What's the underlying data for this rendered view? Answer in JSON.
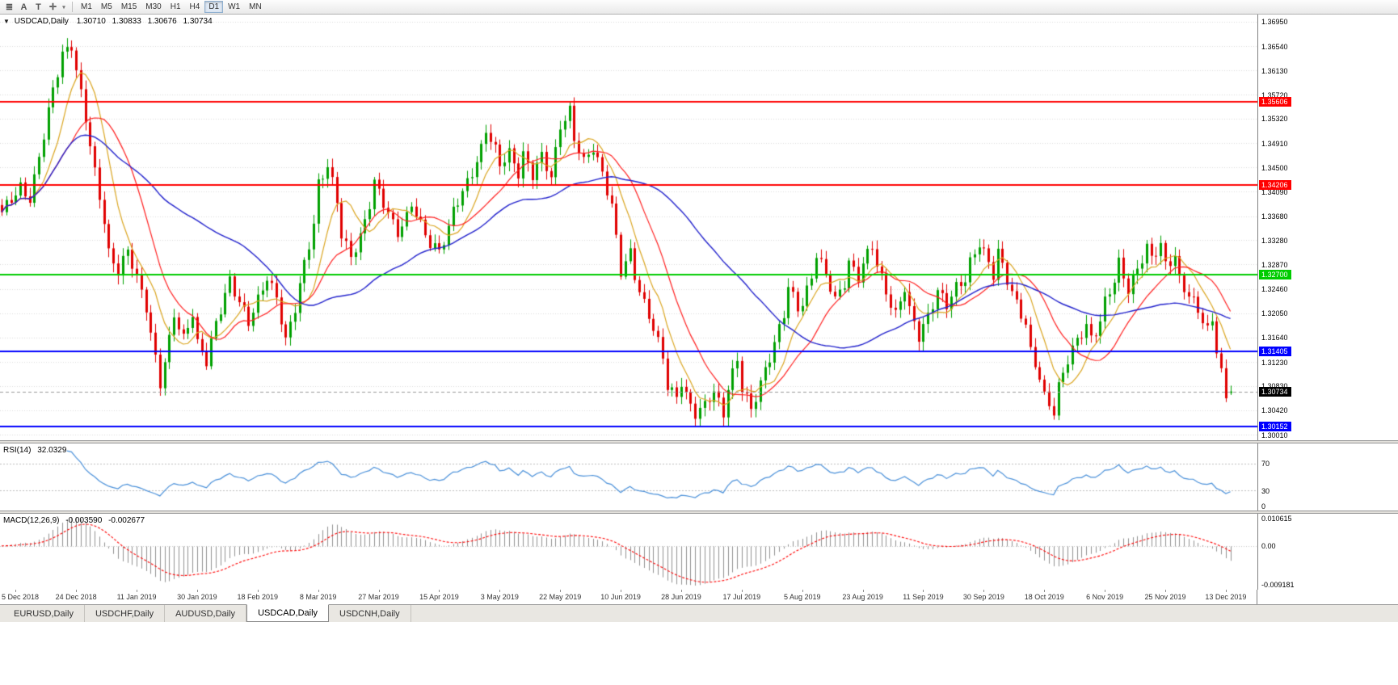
{
  "toolbar": {
    "icons": [
      {
        "name": "chart-list-icon",
        "glyph": "≣"
      },
      {
        "name": "annotate-letter-icon",
        "glyph": "A"
      },
      {
        "name": "text-tool-icon",
        "glyph": "T"
      },
      {
        "name": "crosshair-tool-icon",
        "glyph": "✛"
      },
      {
        "name": "dropdown-caret-icon",
        "glyph": "▾"
      }
    ],
    "timeframes": [
      "M1",
      "M5",
      "M15",
      "M30",
      "H1",
      "H4",
      "D1",
      "W1",
      "MN"
    ],
    "active_timeframe": "D1"
  },
  "chart": {
    "collapse_glyph": "▼",
    "symbol_label": "USDCAD,Daily",
    "open": "1.30710",
    "high": "1.30833",
    "low": "1.30676",
    "close": "1.30734",
    "current_price": "1.30734",
    "axis_ticks": [
      "1.36950",
      "1.36540",
      "1.36130",
      "1.35720",
      "1.35320",
      "1.34910",
      "1.34500",
      "1.34090",
      "1.33680",
      "1.33280",
      "1.32870",
      "1.32460",
      "1.32050",
      "1.31640",
      "1.31230",
      "1.30830",
      "1.30420",
      "1.30010"
    ],
    "hlines": [
      {
        "price": 1.35606,
        "label": "1.35606",
        "color": "#FF0000"
      },
      {
        "price": 1.34206,
        "label": "1.34206",
        "color": "#FF0000"
      },
      {
        "price": 1.327,
        "label": "1.32700",
        "color": "#00CC00"
      },
      {
        "price": 1.31405,
        "label": "1.31405",
        "color": "#0000FF"
      },
      {
        "price": 1.30152,
        "label": "1.30152",
        "color": "#0000FF"
      }
    ]
  },
  "rsi": {
    "name": "RSI(14)",
    "value": "32.0329",
    "levels": [
      "70",
      "30",
      "0"
    ]
  },
  "macd": {
    "name": "MACD(12,26,9)",
    "value1": "-0.003590",
    "value2": "-0.002677",
    "axis_top": "0.010615",
    "axis_zero": "0.00",
    "axis_bottom": "-0.009181"
  },
  "dates": [
    "5 Dec 2018",
    "24 Dec 2018",
    "11 Jan 2019",
    "30 Jan 2019",
    "18 Feb 2019",
    "8 Mar 2019",
    "27 Mar 2019",
    "15 Apr 2019",
    "3 May 2019",
    "22 May 2019",
    "10 Jun 2019",
    "28 Jun 2019",
    "17 Jul 2019",
    "5 Aug 2019",
    "23 Aug 2019",
    "11 Sep 2019",
    "30 Sep 2019",
    "18 Oct 2019",
    "6 Nov 2019",
    "25 Nov 2019",
    "13 Dec 2019"
  ],
  "tabs": [
    "EURUSD,Daily",
    "USDCHF,Daily",
    "AUDUSD,Daily",
    "USDCAD,Daily",
    "USDCNH,Daily"
  ],
  "active_tab": "USDCAD,Daily",
  "colors": {
    "candle_up": "#00A000",
    "candle_down": "#E00000",
    "ma_fast": "#DAA520",
    "ma_mid": "#FF2020",
    "ma_slow": "#2222CC",
    "rsi_line": "#4A90D9",
    "macd_hist": "#909090",
    "macd_signal": "#FF0000",
    "grid": "#DADADA",
    "current_price_badge": "#000000"
  },
  "chart_data": {
    "type": "candlestick",
    "symbol": "USDCAD",
    "timeframe": "Daily",
    "bars_total": 265,
    "first_label_bar": 3,
    "label_step": 13,
    "price_max": 1.3707,
    "price_min": 1.29915,
    "last": {
      "open": 1.3071,
      "high": 1.30833,
      "low": 1.30676,
      "close": 1.30734
    },
    "indicators": {
      "rsi_period": 14,
      "macd": [
        12,
        26,
        9
      ],
      "ma_periods": [
        8,
        16,
        45
      ]
    },
    "close_anchors": [
      [
        0,
        1.337
      ],
      [
        2,
        1.3395
      ],
      [
        4,
        1.342
      ],
      [
        6,
        1.34
      ],
      [
        7,
        1.343
      ],
      [
        9,
        1.35
      ],
      [
        11,
        1.358
      ],
      [
        13,
        1.3645
      ],
      [
        15,
        1.3658
      ],
      [
        16,
        1.3612
      ],
      [
        18,
        1.3528
      ],
      [
        20,
        1.344
      ],
      [
        22,
        1.3365
      ],
      [
        23,
        1.331
      ],
      [
        25,
        1.3275
      ],
      [
        27,
        1.3305
      ],
      [
        29,
        1.3265
      ],
      [
        31,
        1.322
      ],
      [
        33,
        1.313
      ],
      [
        34,
        1.3085
      ],
      [
        36,
        1.3155
      ],
      [
        37,
        1.32
      ],
      [
        39,
        1.3165
      ],
      [
        41,
        1.321
      ],
      [
        42,
        1.3155
      ],
      [
        44,
        1.312
      ],
      [
        46,
        1.3185
      ],
      [
        48,
        1.324
      ],
      [
        49,
        1.3265
      ],
      [
        51,
        1.3225
      ],
      [
        53,
        1.3185
      ],
      [
        55,
        1.3225
      ],
      [
        57,
        1.327
      ],
      [
        59,
        1.3235
      ],
      [
        61,
        1.3155
      ],
      [
        63,
        1.321
      ],
      [
        65,
        1.329
      ],
      [
        67,
        1.336
      ],
      [
        68,
        1.3425
      ],
      [
        70,
        1.345
      ],
      [
        72,
        1.339
      ],
      [
        73,
        1.3335
      ],
      [
        75,
        1.3305
      ],
      [
        77,
        1.3335
      ],
      [
        79,
        1.3385
      ],
      [
        80,
        1.342
      ],
      [
        81,
        1.3405
      ],
      [
        83,
        1.3375
      ],
      [
        85,
        1.3345
      ],
      [
        87,
        1.3365
      ],
      [
        88,
        1.3385
      ],
      [
        90,
        1.335
      ],
      [
        92,
        1.3325
      ],
      [
        94,
        1.3315
      ],
      [
        96,
        1.3345
      ],
      [
        97,
        1.3375
      ],
      [
        99,
        1.3405
      ],
      [
        101,
        1.3445
      ],
      [
        103,
        1.3485
      ],
      [
        104,
        1.3515
      ],
      [
        106,
        1.3475
      ],
      [
        107,
        1.345
      ],
      [
        109,
        1.3475
      ],
      [
        111,
        1.3445
      ],
      [
        112,
        1.3475
      ],
      [
        114,
        1.3435
      ],
      [
        116,
        1.3465
      ],
      [
        118,
        1.3435
      ],
      [
        119,
        1.348
      ],
      [
        120,
        1.3525
      ],
      [
        122,
        1.3545
      ],
      [
        123,
        1.3495
      ],
      [
        125,
        1.3455
      ],
      [
        127,
        1.3485
      ],
      [
        129,
        1.3445
      ],
      [
        131,
        1.3385
      ],
      [
        133,
        1.327
      ],
      [
        135,
        1.3305
      ],
      [
        136,
        1.327
      ],
      [
        138,
        1.3225
      ],
      [
        140,
        1.318
      ],
      [
        142,
        1.3125
      ],
      [
        143,
        1.308
      ],
      [
        145,
        1.3065
      ],
      [
        146,
        1.3095
      ],
      [
        148,
        1.305
      ],
      [
        149,
        1.3035
      ],
      [
        151,
        1.3045
      ],
      [
        153,
        1.3075
      ],
      [
        155,
        1.304
      ],
      [
        156,
        1.3085
      ],
      [
        158,
        1.3125
      ],
      [
        159,
        1.3075
      ],
      [
        161,
        1.304
      ],
      [
        162,
        1.3065
      ],
      [
        164,
        1.3115
      ],
      [
        166,
        1.3155
      ],
      [
        168,
        1.32
      ],
      [
        169,
        1.3245
      ],
      [
        171,
        1.3215
      ],
      [
        172,
        1.3225
      ],
      [
        174,
        1.327
      ],
      [
        175,
        1.3305
      ],
      [
        177,
        1.3265
      ],
      [
        179,
        1.3225
      ],
      [
        181,
        1.326
      ],
      [
        182,
        1.3295
      ],
      [
        184,
        1.3265
      ],
      [
        185,
        1.3285
      ],
      [
        187,
        1.3315
      ],
      [
        188,
        1.3285
      ],
      [
        190,
        1.3245
      ],
      [
        192,
        1.3205
      ],
      [
        194,
        1.3245
      ],
      [
        195,
        1.3205
      ],
      [
        197,
        1.3165
      ],
      [
        198,
        1.3185
      ],
      [
        200,
        1.3225
      ],
      [
        201,
        1.3245
      ],
      [
        203,
        1.3215
      ],
      [
        205,
        1.3245
      ],
      [
        207,
        1.3265
      ],
      [
        208,
        1.3295
      ],
      [
        210,
        1.3325
      ],
      [
        211,
        1.3305
      ],
      [
        213,
        1.3265
      ],
      [
        214,
        1.3305
      ],
      [
        216,
        1.3265
      ],
      [
        218,
        1.3225
      ],
      [
        220,
        1.3185
      ],
      [
        221,
        1.3135
      ],
      [
        223,
        1.3095
      ],
      [
        224,
        1.3065
      ],
      [
        226,
        1.3045
      ],
      [
        227,
        1.3085
      ],
      [
        229,
        1.3125
      ],
      [
        231,
        1.3155
      ],
      [
        233,
        1.3185
      ],
      [
        234,
        1.3165
      ],
      [
        236,
        1.3195
      ],
      [
        237,
        1.3225
      ],
      [
        239,
        1.3255
      ],
      [
        240,
        1.3285
      ],
      [
        242,
        1.3245
      ],
      [
        244,
        1.3285
      ],
      [
        246,
        1.3315
      ],
      [
        247,
        1.3295
      ],
      [
        249,
        1.3315
      ],
      [
        250,
        1.3285
      ],
      [
        252,
        1.3305
      ],
      [
        253,
        1.3265
      ],
      [
        255,
        1.3235
      ],
      [
        257,
        1.3205
      ],
      [
        259,
        1.3175
      ],
      [
        260,
        1.3195
      ],
      [
        261,
        1.315
      ],
      [
        262,
        1.311
      ],
      [
        263,
        1.3062
      ],
      [
        264,
        1.30734
      ]
    ]
  }
}
